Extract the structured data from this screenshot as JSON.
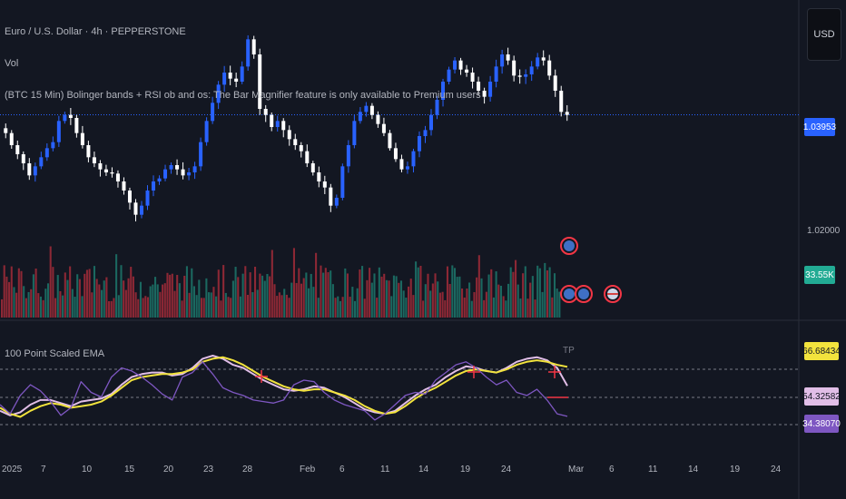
{
  "header": {
    "symbol_line": "Euro / U.S. Dollar · 4h · PEPPERSTONE",
    "vol_label": "Vol",
    "indicator_line": "(BTC 15 Min) Bolinger bands + RSI ob and os: The Bar Magnifier feature is only available to Premium users"
  },
  "currency_button": "USD",
  "price_axis": {
    "current_price": "1.03953",
    "level_label": "1.02000",
    "current_price_color": "#2962ff"
  },
  "volume_badge": {
    "value": "33.55K",
    "color": "#22ab94"
  },
  "oscillator": {
    "title": "100 Point Scaled EMA",
    "marker": "TP",
    "badges": [
      {
        "value": "66.68434",
        "color": "#f2e33d",
        "text_color": "#131722"
      },
      {
        "value": "54.32582",
        "color": "#e1bee7",
        "text_color": "#131722"
      },
      {
        "value": "34.38070",
        "color": "#7e57c2",
        "text_color": "#ffffff"
      }
    ]
  },
  "time_axis": [
    "2025",
    "7",
    "10",
    "15",
    "20",
    "23",
    "28",
    "Feb",
    "6",
    "11",
    "14",
    "19",
    "24",
    "Mar",
    "6",
    "11",
    "14",
    "19",
    "24"
  ],
  "chart_data": [
    {
      "type": "candlestick",
      "title": "Euro / U.S. Dollar · 4h · PEPPERSTONE",
      "y_tick": 1.02,
      "last_price": 1.03953,
      "up_color": "#2962ff",
      "down_color": "#ffffff",
      "close_path": [
        1.0365,
        1.0345,
        1.033,
        1.0315,
        1.0295,
        1.031,
        1.0325,
        1.034,
        1.035,
        1.0385,
        1.0395,
        1.039,
        1.0365,
        1.0345,
        1.0325,
        1.0315,
        1.0305,
        1.03,
        1.0298,
        1.0285,
        1.027,
        1.025,
        1.023,
        1.0245,
        1.027,
        1.0285,
        1.029,
        1.0305,
        1.0312,
        1.0305,
        1.0295,
        1.03,
        1.031,
        1.035,
        1.0385,
        1.0415,
        1.0445,
        1.0465,
        1.0455,
        1.045,
        1.0475,
        1.052,
        1.0495,
        1.0405,
        1.0395,
        1.0375,
        1.0385,
        1.037,
        1.0355,
        1.0345,
        1.0335,
        1.0315,
        1.03,
        1.0285,
        1.0275,
        1.0245,
        1.0258,
        1.031,
        1.0345,
        1.0385,
        1.04,
        1.041,
        1.0395,
        1.038,
        1.0365,
        1.034,
        1.0322,
        1.0305,
        1.031,
        1.0335,
        1.036,
        1.037,
        1.0395,
        1.042,
        1.045,
        1.047,
        1.0485,
        1.047,
        1.0465,
        1.045,
        1.0435,
        1.0425,
        1.045,
        1.0475,
        1.0495,
        1.0485,
        1.046,
        1.0458,
        1.0462,
        1.0475,
        1.049,
        1.0485,
        1.046,
        1.0435,
        1.04,
        1.0395
      ]
    },
    {
      "type": "bar",
      "title": "Vol",
      "last_value": "33.55K",
      "up_color": "#22ab94",
      "down_color": "#f23645"
    },
    {
      "type": "line",
      "title": "100 Point Scaled EMA",
      "y_reference_lines": [
        66.68434,
        54.32582,
        34.3807
      ],
      "series": [
        {
          "color": "#7e57c2",
          "last": 34.3807,
          "values": [
            42,
            36,
            48,
            55,
            51,
            44,
            35,
            40,
            57,
            50,
            47,
            60,
            66,
            64,
            60,
            55,
            49,
            45,
            60,
            63,
            70,
            62,
            53,
            50,
            48,
            45,
            44,
            43,
            45,
            55,
            58,
            57,
            50,
            45,
            42,
            40,
            38,
            32,
            36,
            42,
            48,
            50,
            49,
            58,
            63,
            68,
            70,
            66,
            60,
            55,
            58,
            50,
            48,
            52,
            45,
            36,
            34.3807
          ]
        },
        {
          "color": "#e1bee7",
          "last": 54.32582,
          "values": [
            38,
            35,
            37,
            42,
            45,
            45,
            43,
            41,
            44,
            45,
            46,
            49,
            55,
            60,
            62,
            63,
            63,
            61,
            62,
            66,
            72,
            74,
            72,
            68,
            66,
            62,
            58,
            55,
            52,
            51,
            52,
            54,
            53,
            50,
            47,
            43,
            39,
            37,
            36,
            38,
            43,
            48,
            52,
            55,
            60,
            64,
            67,
            66,
            64,
            63,
            66,
            70,
            72,
            73,
            71,
            66,
            54.32582
          ]
        },
        {
          "color": "#f2e33d",
          "last": 66.68434,
          "values": [
            40,
            36,
            34,
            38,
            41,
            43,
            42,
            40,
            41,
            42,
            44,
            48,
            53,
            58,
            60,
            61,
            62,
            62,
            63,
            65,
            70,
            72,
            73,
            71,
            68,
            64,
            60,
            57,
            54,
            52,
            51,
            52,
            52,
            50,
            48,
            45,
            41,
            38,
            36,
            37,
            41,
            46,
            50,
            53,
            57,
            61,
            64,
            65,
            64,
            63,
            65,
            68,
            70,
            71,
            70,
            68,
            66.68434
          ]
        }
      ]
    }
  ]
}
